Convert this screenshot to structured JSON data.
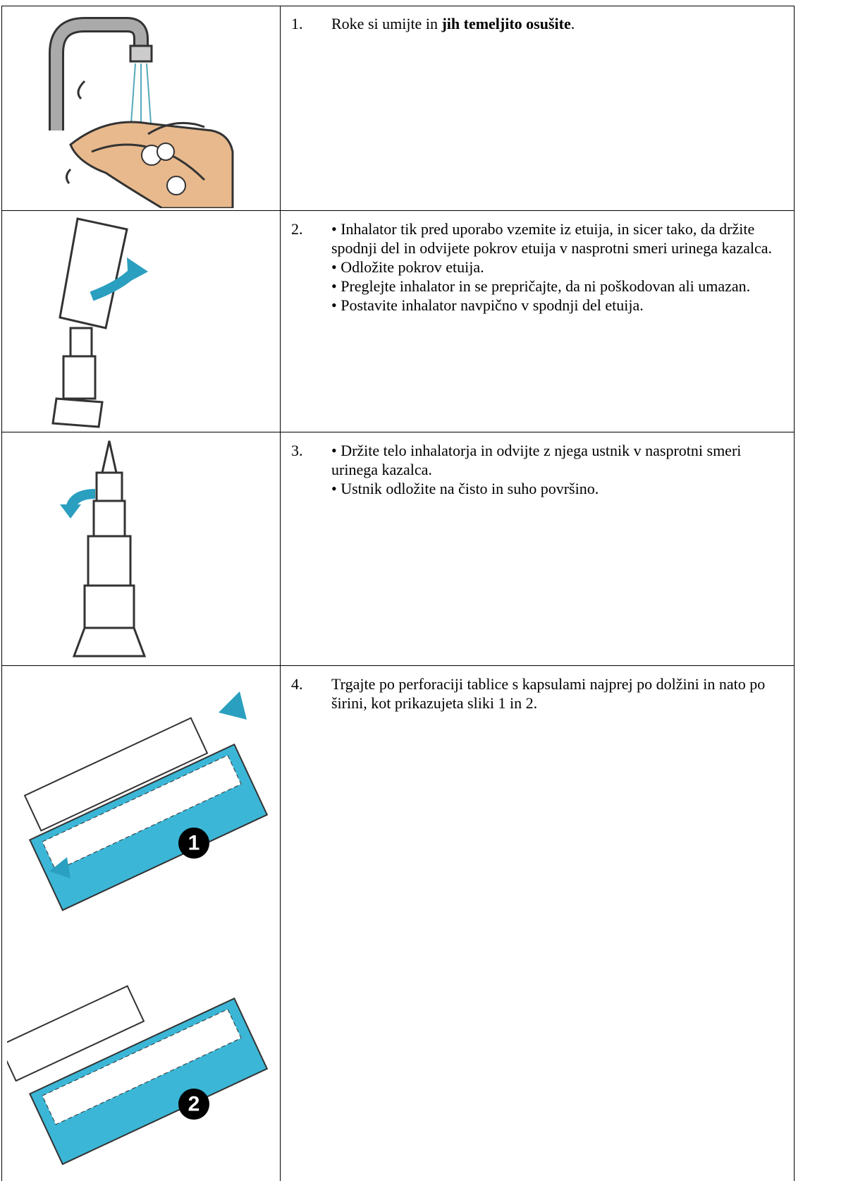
{
  "rows": [
    {
      "number": "1.",
      "segments": [
        {
          "text": "Roke si umijte in "
        },
        {
          "text": "jih temeljito osušite",
          "bold": true
        },
        {
          "text": "."
        }
      ]
    },
    {
      "number": "2.",
      "items": [
        "• Inhalator tik pred uporabo vzemite iz etuija, in sicer tako, da držite spodnji del in odvijete pokrov etuija v nasprotni smeri urinega kazalca.",
        "• Odložite pokrov etuija.",
        "• Preglejte inhalator in se prepričajte, da ni poškodovan ali umazan.",
        "• Postavite inhalator navpično v spodnji del etuija."
      ]
    },
    {
      "number": "3.",
      "items": [
        "• Držite telo inhalatorja in odvijte z njega ustnik v nasprotni smeri urinega kazalca.",
        "• Ustnik odložite na čisto in suho površino."
      ]
    },
    {
      "number": "4.",
      "items": [
        "Trgajte po perforaciji tablice s kapsulami najprej po dolžini in nato po širini, kot prikazujeta sliki 1 in 2."
      ],
      "figure_labels": [
        "1",
        "2"
      ]
    }
  ]
}
